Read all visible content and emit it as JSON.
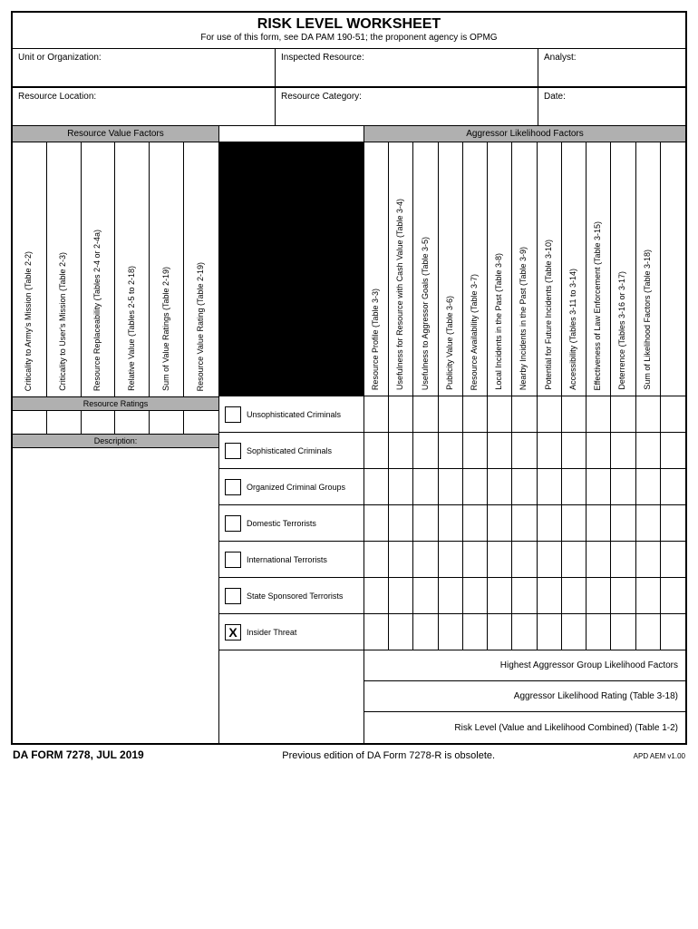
{
  "title": "RISK LEVEL WORKSHEET",
  "subtitle": "For use of this form, see DA PAM 190-51; the proponent agency is OPMG",
  "header": {
    "unit_label": "Unit or Organization:",
    "inspected_label": "Inspected Resource:",
    "analyst_label": "Analyst:",
    "location_label": "Resource Location:",
    "category_label": "Resource Category:",
    "date_label": "Date:"
  },
  "section_labels": {
    "value_factors": "Resource Value Factors",
    "likelihood_factors": "Aggressor Likelihood Factors",
    "resource_ratings": "Resource Ratings",
    "description": "Description:"
  },
  "value_columns": [
    "Criticality to Army's Mission (Table 2-2)",
    "Criticality to User's Mission (Table 2-3)",
    "Resource Replaceability (Tables 2-4 or 2-4a)",
    "Relative Value (Tables 2-5 to 2-18)",
    "Sum of Value Ratings (Table 2-19)",
    "Resource Value Rating (Table 2-19)"
  ],
  "likelihood_columns": [
    "Resource Profile (Table 3-3)",
    "Usefulness for Resource with Cash Value (Table 3-4)",
    "Usefulness to Aggressor Goals (Table 3-5)",
    "Publicity Value (Table 3-6)",
    "Resource Availability (Table 3-7)",
    "Local Incidents in the Past (Table 3-8)",
    "Nearby Incidents in the Past (Table 3-9)",
    "Potential for Future Incidents (Table 3-10)",
    "Accessibility (Tables 3-11 to 3-14)",
    "Effectiveness of Law Enforcement (Table 3-15)",
    "Deterrence (Tables 3-16 or 3-17)",
    "Sum of Likelihood Factors (Table 3-18)",
    ""
  ],
  "aggressors": [
    {
      "label": "Unsophisticated Criminals",
      "checked": ""
    },
    {
      "label": "Sophisticated Criminals",
      "checked": ""
    },
    {
      "label": "Organized Criminal Groups",
      "checked": ""
    },
    {
      "label": "Domestic Terrorists",
      "checked": ""
    },
    {
      "label": "International Terrorists",
      "checked": ""
    },
    {
      "label": "State Sponsored Terrorists",
      "checked": ""
    },
    {
      "label": "Insider Threat",
      "checked": "X"
    }
  ],
  "summary_rows": [
    "Highest Aggressor Group Likelihood Factors",
    "Aggressor Likelihood Rating (Table 3-18)",
    "Risk Level (Value and Likelihood Combined) (Table 1-2)"
  ],
  "footer": {
    "form_id": "DA FORM 7278, JUL 2019",
    "obsolete": "Previous edition of DA Form 7278-R is obsolete.",
    "version": "APD AEM v1.00"
  },
  "colors": {
    "gray": "#b0b0b0",
    "black": "#000000",
    "white": "#ffffff"
  }
}
